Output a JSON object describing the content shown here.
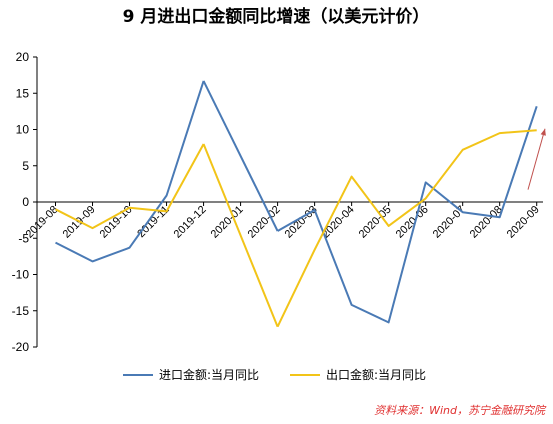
{
  "chart_data": {
    "type": "line",
    "title": "9 月进出口金额同比增速（以美元计价）",
    "categories": [
      "2019-08",
      "2019-09",
      "2019-10",
      "2019-11",
      "2019-12",
      "2020-01",
      "2020-02",
      "2020-03",
      "2020-04",
      "2020-05",
      "2020-06",
      "2020-07",
      "2020-08",
      "2020-09"
    ],
    "series": [
      {
        "name": "进口金额:当月同比",
        "color": "#4a7ab5",
        "values": [
          -5.6,
          -8.2,
          -6.3,
          0.9,
          16.7,
          null,
          -4.0,
          -1.1,
          -14.2,
          -16.6,
          2.7,
          -1.4,
          -2.1,
          13.2
        ]
      },
      {
        "name": "出口金额:当月同比",
        "color": "#f2c418",
        "values": [
          -1.0,
          -3.6,
          -0.8,
          -1.3,
          8.0,
          null,
          -17.2,
          -6.6,
          3.5,
          -3.3,
          0.5,
          7.2,
          9.5,
          9.9
        ]
      }
    ],
    "ylim": [
      -20,
      20
    ],
    "yticks": [
      -20,
      -15,
      -10,
      -5,
      0,
      5,
      10,
      15,
      20
    ],
    "grid": false,
    "legend_position": "bottom",
    "annotation_color": "#c0504d",
    "source": "资料来源：Wind，苏宁金融研究院"
  }
}
